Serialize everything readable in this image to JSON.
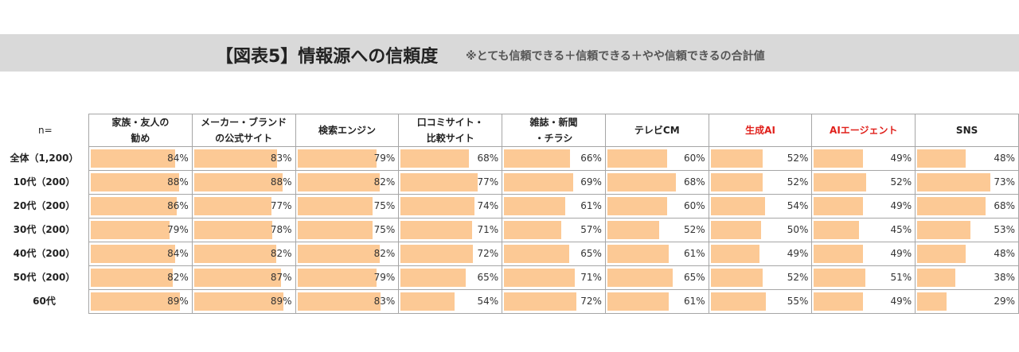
{
  "title": "【図表5】情報源への信頼度",
  "subtitle": "※とても信頼できる＋信頼できる＋やや信頼できるの合計値",
  "n_label": "n=",
  "colors": {
    "bar": "#fcc995",
    "header_bg": "#d9d9d9",
    "highlight_text": "#e0201b",
    "border": "#a6a6a6"
  },
  "chart_data": {
    "type": "table",
    "columns": [
      {
        "label": "家族・友人の\n勧め",
        "highlight": false
      },
      {
        "label": "メーカー・ブランド\nの公式サイト",
        "highlight": false
      },
      {
        "label": "検索エンジン",
        "highlight": false
      },
      {
        "label": "口コミサイト・\n比較サイト",
        "highlight": false
      },
      {
        "label": "雑誌・新聞\n・チラシ",
        "highlight": false
      },
      {
        "label": "テレビCM",
        "highlight": false
      },
      {
        "label": "生成AI",
        "highlight": true
      },
      {
        "label": "AIエージェント",
        "highlight": true
      },
      {
        "label": "SNS",
        "highlight": false
      }
    ],
    "rows": [
      {
        "label": "全体（1,200）",
        "values": [
          84,
          83,
          79,
          68,
          66,
          60,
          52,
          49,
          48
        ]
      },
      {
        "label": "10代（200）",
        "values": [
          88,
          88,
          82,
          77,
          69,
          68,
          52,
          52,
          73
        ]
      },
      {
        "label": "20代（200）",
        "values": [
          86,
          77,
          75,
          74,
          61,
          60,
          54,
          49,
          68
        ]
      },
      {
        "label": "30代（200）",
        "values": [
          79,
          78,
          75,
          71,
          57,
          52,
          50,
          45,
          53
        ]
      },
      {
        "label": "40代（200）",
        "values": [
          84,
          82,
          82,
          72,
          65,
          61,
          49,
          49,
          48
        ]
      },
      {
        "label": "50代（200）",
        "values": [
          82,
          87,
          79,
          65,
          71,
          65,
          52,
          51,
          38
        ]
      },
      {
        "label": "60代",
        "values": [
          89,
          89,
          83,
          54,
          72,
          61,
          55,
          49,
          29
        ]
      }
    ],
    "value_suffix": "%",
    "value_max": 100
  }
}
